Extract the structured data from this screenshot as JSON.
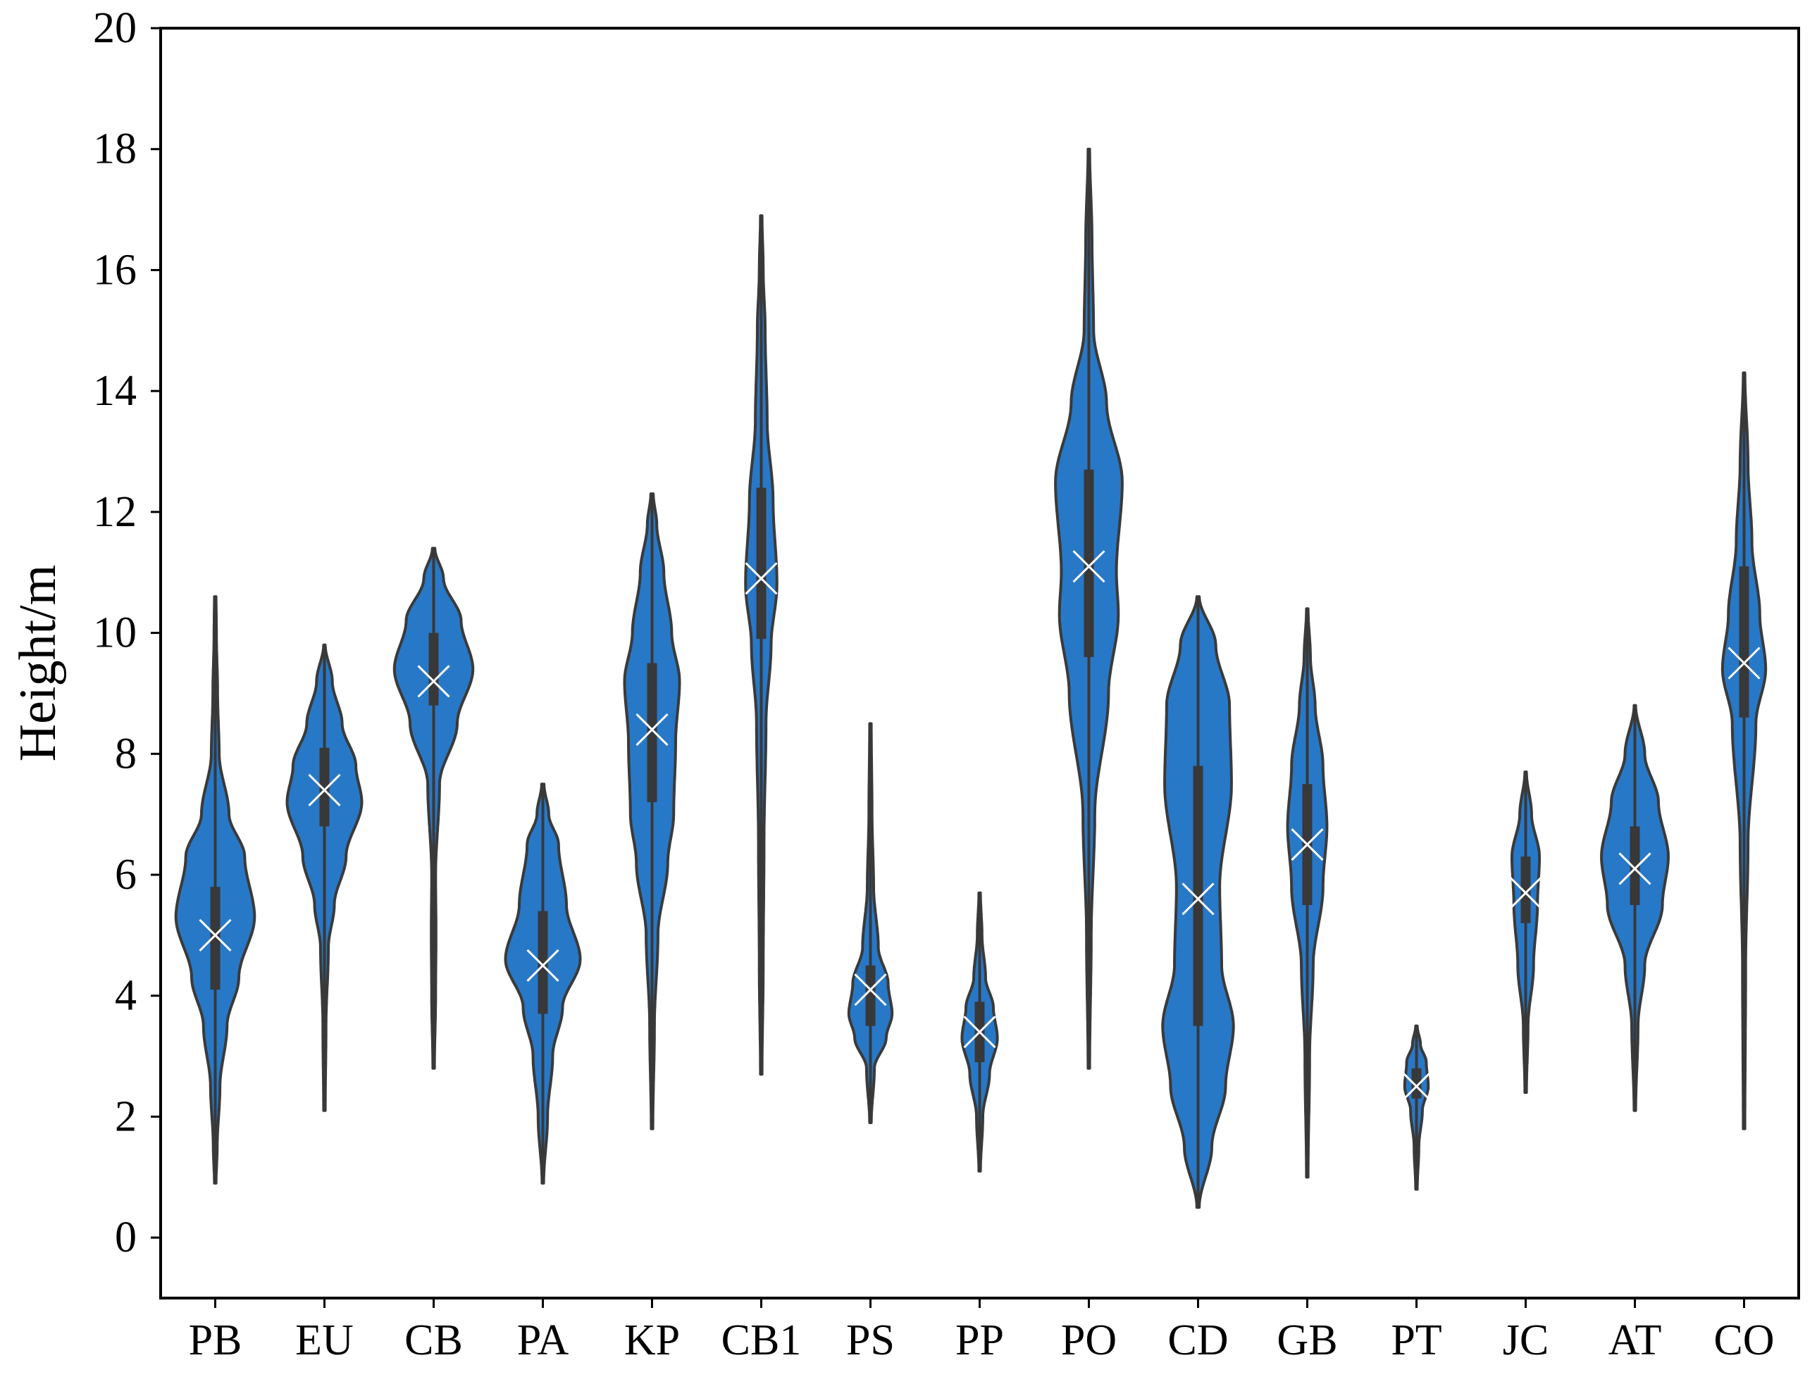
{
  "chart_data": {
    "type": "violin",
    "title": "",
    "xlabel": "",
    "ylabel": "Height/m",
    "ylim": [
      -1,
      20
    ],
    "yticks": [
      0,
      2,
      4,
      6,
      8,
      10,
      12,
      14,
      16,
      18,
      20
    ],
    "grid": false,
    "colors": {
      "fill": "#2878c8",
      "outline": "#3a3a3a",
      "box": "#383838",
      "mean_marker": "#ffffff"
    },
    "mean_marker": "x",
    "categories": [
      "PB",
      "EU",
      "CB",
      "PA",
      "KP",
      "CB1",
      "PS",
      "PP",
      "PO",
      "CD",
      "GB",
      "PT",
      "JC",
      "AT",
      "CO"
    ],
    "series": [
      {
        "category": "PB",
        "min": 0.9,
        "max": 10.6,
        "q1": 4.1,
        "median": 5.2,
        "q3": 5.8,
        "mean": 5.0,
        "density": [
          [
            0.9,
            0.02
          ],
          [
            1.5,
            0.05
          ],
          [
            2.5,
            0.12
          ],
          [
            3.5,
            0.3
          ],
          [
            4.3,
            0.6
          ],
          [
            5.3,
            1.0
          ],
          [
            6.3,
            0.75
          ],
          [
            7.0,
            0.35
          ],
          [
            8.0,
            0.1
          ],
          [
            9.0,
            0.06
          ],
          [
            10.0,
            0.03
          ],
          [
            10.6,
            0.02
          ]
        ]
      },
      {
        "category": "EU",
        "min": 2.1,
        "max": 9.8,
        "q1": 6.8,
        "median": 7.6,
        "q3": 8.1,
        "mean": 7.4,
        "density": [
          [
            2.1,
            0.02
          ],
          [
            3.5,
            0.04
          ],
          [
            4.8,
            0.1
          ],
          [
            5.5,
            0.25
          ],
          [
            6.3,
            0.55
          ],
          [
            7.2,
            0.95
          ],
          [
            7.8,
            0.8
          ],
          [
            8.5,
            0.45
          ],
          [
            9.2,
            0.2
          ],
          [
            9.8,
            0.02
          ]
        ]
      },
      {
        "category": "CB",
        "min": 2.8,
        "max": 11.4,
        "q1": 8.8,
        "median": 9.5,
        "q3": 10.0,
        "mean": 9.2,
        "density": [
          [
            2.8,
            0.02
          ],
          [
            4.0,
            0.05
          ],
          [
            5.0,
            0.06
          ],
          [
            6.0,
            0.05
          ],
          [
            7.5,
            0.15
          ],
          [
            8.5,
            0.6
          ],
          [
            9.4,
            1.0
          ],
          [
            10.2,
            0.7
          ],
          [
            10.9,
            0.25
          ],
          [
            11.4,
            0.03
          ]
        ]
      },
      {
        "category": "PA",
        "min": 0.9,
        "max": 7.5,
        "q1": 3.7,
        "median": 4.7,
        "q3": 5.4,
        "mean": 4.5,
        "density": [
          [
            0.9,
            0.02
          ],
          [
            2.0,
            0.12
          ],
          [
            3.0,
            0.25
          ],
          [
            3.8,
            0.5
          ],
          [
            4.6,
            0.95
          ],
          [
            5.5,
            0.6
          ],
          [
            6.5,
            0.4
          ],
          [
            7.0,
            0.15
          ],
          [
            7.5,
            0.03
          ]
        ]
      },
      {
        "category": "KP",
        "min": 1.8,
        "max": 12.3,
        "q1": 7.2,
        "median": 8.5,
        "q3": 9.5,
        "mean": 8.4,
        "density": [
          [
            1.8,
            0.02
          ],
          [
            3.5,
            0.06
          ],
          [
            5.0,
            0.15
          ],
          [
            6.2,
            0.4
          ],
          [
            7.0,
            0.55
          ],
          [
            8.2,
            0.6
          ],
          [
            9.2,
            0.7
          ],
          [
            10.0,
            0.5
          ],
          [
            11.0,
            0.3
          ],
          [
            11.8,
            0.12
          ],
          [
            12.3,
            0.03
          ]
        ]
      },
      {
        "category": "CB1",
        "min": 2.7,
        "max": 16.9,
        "q1": 9.9,
        "median": 11.0,
        "q3": 12.4,
        "mean": 10.9,
        "density": [
          [
            2.7,
            0.02
          ],
          [
            4.5,
            0.05
          ],
          [
            6.5,
            0.07
          ],
          [
            8.5,
            0.12
          ],
          [
            9.8,
            0.25
          ],
          [
            10.8,
            0.4
          ],
          [
            12.2,
            0.3
          ],
          [
            13.5,
            0.15
          ],
          [
            15.0,
            0.1
          ],
          [
            16.0,
            0.05
          ],
          [
            16.9,
            0.02
          ]
        ]
      },
      {
        "category": "PS",
        "min": 1.9,
        "max": 8.5,
        "q1": 3.5,
        "median": 4.0,
        "q3": 4.5,
        "mean": 4.1,
        "density": [
          [
            1.9,
            0.02
          ],
          [
            2.8,
            0.1
          ],
          [
            3.3,
            0.4
          ],
          [
            3.7,
            0.55
          ],
          [
            4.2,
            0.45
          ],
          [
            4.8,
            0.2
          ],
          [
            5.8,
            0.08
          ],
          [
            7.0,
            0.04
          ],
          [
            8.5,
            0.02
          ]
        ]
      },
      {
        "category": "PP",
        "min": 1.1,
        "max": 5.7,
        "q1": 2.9,
        "median": 3.4,
        "q3": 3.9,
        "mean": 3.4,
        "density": [
          [
            1.1,
            0.02
          ],
          [
            2.0,
            0.08
          ],
          [
            2.7,
            0.25
          ],
          [
            3.3,
            0.45
          ],
          [
            3.8,
            0.35
          ],
          [
            4.3,
            0.15
          ],
          [
            5.0,
            0.06
          ],
          [
            5.7,
            0.02
          ]
        ]
      },
      {
        "category": "PO",
        "min": 2.8,
        "max": 18.0,
        "q1": 9.6,
        "median": 11.3,
        "q3": 12.7,
        "mean": 11.1,
        "density": [
          [
            2.8,
            0.02
          ],
          [
            5.0,
            0.06
          ],
          [
            7.0,
            0.15
          ],
          [
            9.0,
            0.5
          ],
          [
            10.3,
            0.75
          ],
          [
            11.0,
            0.7
          ],
          [
            12.5,
            0.85
          ],
          [
            13.8,
            0.45
          ],
          [
            15.0,
            0.12
          ],
          [
            16.5,
            0.08
          ],
          [
            18.0,
            0.02
          ]
        ]
      },
      {
        "category": "CD",
        "min": 0.5,
        "max": 10.6,
        "q1": 3.5,
        "median": 5.5,
        "q3": 7.8,
        "mean": 5.6,
        "density": [
          [
            0.5,
            0.03
          ],
          [
            1.5,
            0.35
          ],
          [
            2.5,
            0.7
          ],
          [
            3.5,
            0.9
          ],
          [
            4.5,
            0.6
          ],
          [
            5.8,
            0.55
          ],
          [
            7.5,
            0.85
          ],
          [
            8.8,
            0.8
          ],
          [
            9.8,
            0.45
          ],
          [
            10.6,
            0.03
          ]
        ]
      },
      {
        "category": "GB",
        "min": 1.0,
        "max": 10.4,
        "q1": 5.5,
        "median": 6.6,
        "q3": 7.5,
        "mean": 6.5,
        "density": [
          [
            1.0,
            0.02
          ],
          [
            3.0,
            0.06
          ],
          [
            4.5,
            0.15
          ],
          [
            5.8,
            0.4
          ],
          [
            6.8,
            0.5
          ],
          [
            7.8,
            0.4
          ],
          [
            8.8,
            0.2
          ],
          [
            9.6,
            0.08
          ],
          [
            10.4,
            0.02
          ]
        ]
      },
      {
        "category": "PT",
        "min": 0.8,
        "max": 3.5,
        "q1": 2.3,
        "median": 2.6,
        "q3": 2.8,
        "mean": 2.5,
        "density": [
          [
            0.8,
            0.02
          ],
          [
            1.5,
            0.06
          ],
          [
            2.1,
            0.15
          ],
          [
            2.5,
            0.3
          ],
          [
            2.9,
            0.25
          ],
          [
            3.2,
            0.1
          ],
          [
            3.5,
            0.02
          ]
        ]
      },
      {
        "category": "JC",
        "min": 2.4,
        "max": 7.7,
        "q1": 5.2,
        "median": 5.9,
        "q3": 6.3,
        "mean": 5.7,
        "density": [
          [
            2.4,
            0.02
          ],
          [
            3.5,
            0.06
          ],
          [
            4.5,
            0.2
          ],
          [
            5.5,
            0.3
          ],
          [
            6.3,
            0.35
          ],
          [
            7.0,
            0.15
          ],
          [
            7.7,
            0.02
          ]
        ]
      },
      {
        "category": "AT",
        "min": 2.1,
        "max": 8.8,
        "q1": 5.5,
        "median": 6.3,
        "q3": 6.8,
        "mean": 6.1,
        "density": [
          [
            2.1,
            0.02
          ],
          [
            3.5,
            0.08
          ],
          [
            4.5,
            0.25
          ],
          [
            5.5,
            0.7
          ],
          [
            6.3,
            0.85
          ],
          [
            7.2,
            0.6
          ],
          [
            8.0,
            0.25
          ],
          [
            8.8,
            0.02
          ]
        ]
      },
      {
        "category": "CO",
        "min": 1.8,
        "max": 14.3,
        "q1": 8.6,
        "median": 9.9,
        "q3": 11.1,
        "mean": 9.5,
        "density": [
          [
            1.8,
            0.02
          ],
          [
            4.5,
            0.04
          ],
          [
            6.5,
            0.1
          ],
          [
            8.5,
            0.3
          ],
          [
            9.4,
            0.55
          ],
          [
            10.3,
            0.4
          ],
          [
            11.5,
            0.2
          ],
          [
            12.8,
            0.1
          ],
          [
            14.3,
            0.02
          ]
        ]
      }
    ]
  }
}
